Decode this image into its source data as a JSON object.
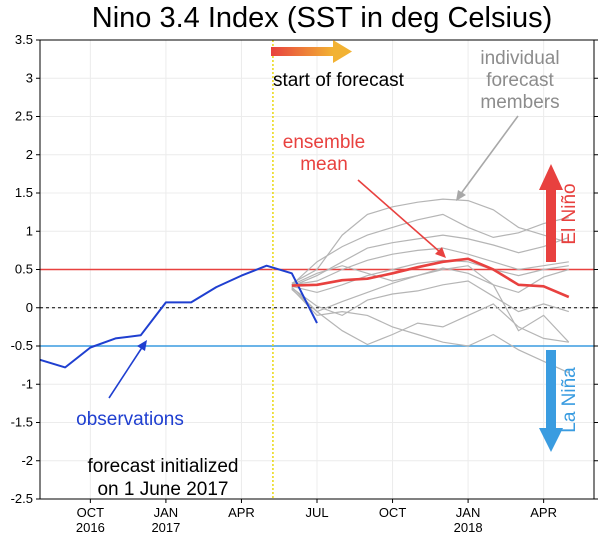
{
  "chart_data": {
    "type": "line",
    "title": "Nino 3.4 Index (SST in deg Celsius)",
    "xlabel": "",
    "ylabel": "",
    "ylim": [
      -2.5,
      3.5
    ],
    "yticks": [
      -2.5,
      -2,
      -1.5,
      -1,
      -0.5,
      0,
      0.5,
      1,
      1.5,
      2,
      2.5,
      3,
      3.5
    ],
    "ytick_labels": [
      "-2.5",
      "-2",
      "-1.5",
      "-1",
      "-0.5",
      "0",
      "0.5",
      "1",
      "1.5",
      "2",
      "2.5",
      "3",
      "3.5"
    ],
    "x_range": [
      "2016-08",
      "2018-06"
    ],
    "xticks": [
      {
        "month": "2016-10",
        "label": "OCT",
        "year": "2016"
      },
      {
        "month": "2017-01",
        "label": "JAN",
        "year": "2017"
      },
      {
        "month": "2017-04",
        "label": "APR",
        "year": ""
      },
      {
        "month": "2017-07",
        "label": "JUL",
        "year": ""
      },
      {
        "month": "2017-10",
        "label": "OCT",
        "year": ""
      },
      {
        "month": "2018-01",
        "label": "JAN",
        "year": "2018"
      },
      {
        "month": "2018-04",
        "label": "APR",
        "year": ""
      }
    ],
    "forecast_start": "2017-05",
    "thresholds": {
      "el_nino": 0.5,
      "la_nina": -0.5,
      "zero": 0
    },
    "colors": {
      "observations": "#1f3fd0",
      "ensemble_mean": "#e8413f",
      "members": "#b5b5b5",
      "el_nino": "#e8413f",
      "la_nina": "#3a9ce0",
      "forecast_line": "#e6d400",
      "arrow_start": "#e8413f",
      "arrow_end": "#f2b233"
    },
    "series": [
      {
        "name": "observations",
        "x": [
          "2016-08",
          "2016-09",
          "2016-10",
          "2016-11",
          "2016-12",
          "2017-01",
          "2017-02",
          "2017-03",
          "2017-04",
          "2017-05",
          "2017-06",
          "2017-07"
        ],
        "values": [
          -0.68,
          -0.78,
          -0.52,
          -0.4,
          -0.36,
          0.07,
          0.07,
          0.27,
          0.42,
          0.55,
          0.45,
          -0.2
        ]
      },
      {
        "name": "ensemble mean",
        "x": [
          "2017-06",
          "2017-07",
          "2017-08",
          "2017-09",
          "2017-10",
          "2017-11",
          "2017-12",
          "2018-01",
          "2018-02",
          "2018-03",
          "2018-04",
          "2018-05"
        ],
        "values": [
          0.29,
          0.3,
          0.36,
          0.38,
          0.45,
          0.53,
          0.6,
          0.64,
          0.5,
          0.3,
          0.28,
          0.14
        ]
      }
    ],
    "members": [
      {
        "x": [
          "2017-06",
          "2017-07",
          "2017-08",
          "2017-09",
          "2017-10",
          "2017-11",
          "2017-12",
          "2018-01",
          "2018-02",
          "2018-03",
          "2018-04",
          "2018-05"
        ],
        "values": [
          0.32,
          0.5,
          0.95,
          1.22,
          1.32,
          1.38,
          1.42,
          1.4,
          1.28,
          1.05,
          0.95,
          0.85
        ]
      },
      {
        "x": [
          "2017-06",
          "2017-07",
          "2017-08",
          "2017-09",
          "2017-10",
          "2017-11",
          "2017-12",
          "2018-01",
          "2018-02",
          "2018-03",
          "2018-04",
          "2018-05"
        ],
        "values": [
          0.3,
          0.6,
          0.8,
          0.95,
          1.05,
          1.15,
          1.22,
          1.05,
          0.92,
          0.98,
          1.1,
          1.18
        ]
      },
      {
        "x": [
          "2017-06",
          "2017-07",
          "2017-08",
          "2017-09",
          "2017-10",
          "2017-11",
          "2017-12",
          "2018-01",
          "2018-02",
          "2018-03",
          "2018-04",
          "2018-05"
        ],
        "values": [
          0.28,
          0.42,
          0.6,
          0.78,
          0.85,
          0.9,
          0.95,
          0.9,
          0.82,
          0.72,
          0.8,
          0.92
        ]
      },
      {
        "x": [
          "2017-06",
          "2017-07",
          "2017-08",
          "2017-09",
          "2017-10",
          "2017-11",
          "2017-12",
          "2018-01",
          "2018-02",
          "2018-03",
          "2018-04",
          "2018-05"
        ],
        "values": [
          0.3,
          0.35,
          0.5,
          0.62,
          0.7,
          0.75,
          0.78,
          0.7,
          0.6,
          0.5,
          0.55,
          0.6
        ]
      },
      {
        "x": [
          "2017-06",
          "2017-07",
          "2017-08",
          "2017-09",
          "2017-10",
          "2017-11",
          "2017-12",
          "2018-01",
          "2018-02",
          "2018-03",
          "2018-04",
          "2018-05"
        ],
        "values": [
          0.28,
          0.2,
          0.3,
          0.42,
          0.5,
          0.58,
          0.62,
          0.6,
          0.5,
          0.42,
          0.5,
          0.55
        ]
      },
      {
        "x": [
          "2017-06",
          "2017-07",
          "2017-08",
          "2017-09",
          "2017-10",
          "2017-11",
          "2017-12",
          "2018-01",
          "2018-02",
          "2018-03",
          "2018-04",
          "2018-05"
        ],
        "values": [
          0.27,
          -0.05,
          0.08,
          0.2,
          0.32,
          0.42,
          0.52,
          0.45,
          0.3,
          0.2,
          0.4,
          0.5
        ]
      },
      {
        "x": [
          "2017-06",
          "2017-07",
          "2017-08",
          "2017-09",
          "2017-10",
          "2017-11",
          "2017-12",
          "2018-01",
          "2018-02",
          "2018-03",
          "2018-04",
          "2018-05"
        ],
        "values": [
          0.26,
          0.02,
          -0.1,
          0.1,
          0.18,
          0.22,
          0.3,
          0.35,
          0.15,
          -0.05,
          0.05,
          -0.05
        ]
      },
      {
        "x": [
          "2017-06",
          "2017-07",
          "2017-08",
          "2017-09",
          "2017-10",
          "2017-11",
          "2017-12",
          "2018-01",
          "2018-02",
          "2018-03",
          "2018-04",
          "2018-05"
        ],
        "values": [
          0.25,
          -0.1,
          -0.05,
          -0.1,
          -0.25,
          -0.35,
          -0.45,
          -0.5,
          -0.35,
          -0.55,
          -0.7,
          -0.85
        ]
      },
      {
        "x": [
          "2017-06",
          "2017-07",
          "2017-08",
          "2017-09",
          "2017-10",
          "2017-11",
          "2017-12",
          "2018-01",
          "2018-02",
          "2018-03",
          "2018-04",
          "2018-05"
        ],
        "values": [
          0.24,
          -0.05,
          -0.3,
          -0.48,
          -0.35,
          -0.2,
          -0.25,
          -0.1,
          0.05,
          -0.25,
          -0.4,
          -0.45
        ]
      },
      {
        "x": [
          "2017-06",
          "2017-07",
          "2017-08",
          "2017-09",
          "2017-10",
          "2017-11",
          "2017-12",
          "2018-01",
          "2018-02",
          "2018-03",
          "2018-04",
          "2018-05"
        ],
        "values": [
          0.3,
          0.45,
          0.55,
          0.45,
          0.35,
          0.42,
          0.5,
          0.55,
          0.3,
          -0.3,
          -0.1,
          -0.45
        ]
      }
    ],
    "annotations": {
      "start_of_forecast": "start of forecast",
      "individual_1": "individual",
      "individual_2": "forecast",
      "individual_3": "members",
      "ensemble_1": "ensemble",
      "ensemble_2": "mean",
      "el_nino": "El Niño",
      "la_nina": "La Niña",
      "observations": "observations",
      "initialized_1": "forecast initialized",
      "initialized_2": "on 1 June 2017"
    }
  }
}
